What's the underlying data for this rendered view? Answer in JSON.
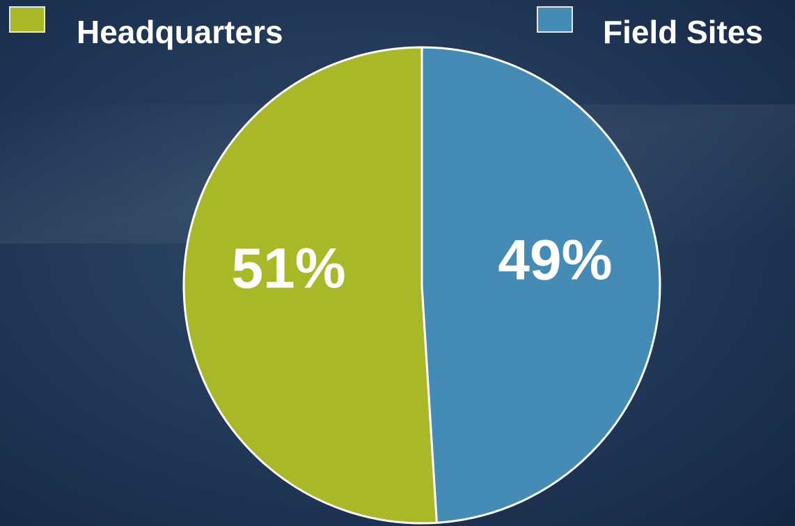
{
  "chart_data": {
    "type": "pie",
    "categories": [
      "Headquarters",
      "Field Sites"
    ],
    "values": [
      51,
      49
    ],
    "value_labels": [
      "51%",
      "49%"
    ],
    "colors": [
      "#a8b826",
      "#448cb6"
    ],
    "legend": "top"
  }
}
